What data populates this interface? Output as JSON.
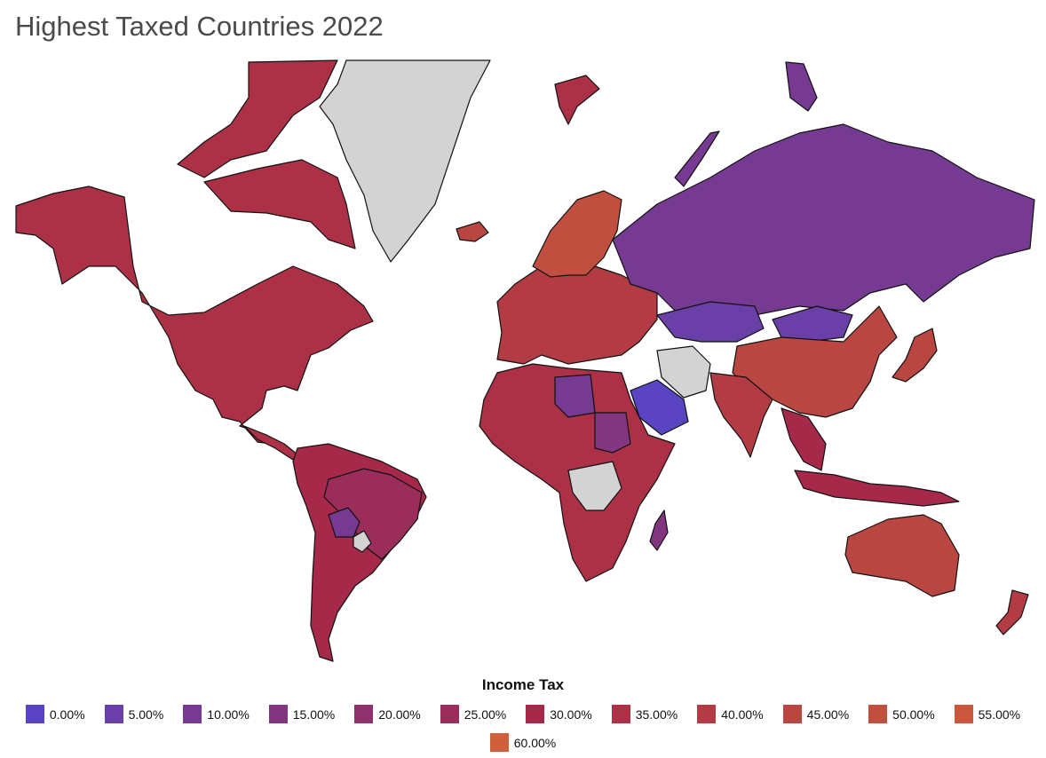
{
  "title": "Highest Taxed Countries 2022",
  "legend": {
    "title": "Income Tax",
    "items": [
      {
        "label": "0.00%",
        "color": "#5a44c2"
      },
      {
        "label": "5.00%",
        "color": "#6a40a8"
      },
      {
        "label": "10.00%",
        "color": "#773a93"
      },
      {
        "label": "15.00%",
        "color": "#833680"
      },
      {
        "label": "20.00%",
        "color": "#8f316d"
      },
      {
        "label": "25.00%",
        "color": "#9b2d5a"
      },
      {
        "label": "30.00%",
        "color": "#a6294a"
      },
      {
        "label": "35.00%",
        "color": "#ad3146"
      },
      {
        "label": "40.00%",
        "color": "#b33c44"
      },
      {
        "label": "45.00%",
        "color": "#ba4642"
      },
      {
        "label": "50.00%",
        "color": "#c04f40"
      },
      {
        "label": "55.00%",
        "color": "#c8573e"
      },
      {
        "label": "60.00%",
        "color": "#cf603c"
      }
    ]
  },
  "colors": {
    "no_data": "#d3d3d3",
    "border": "#111111",
    "background": "#ffffff"
  },
  "map_regions": [
    {
      "name": "north-america",
      "tax": "35.00%"
    },
    {
      "name": "canada-arctic-islands",
      "tax": "35.00%"
    },
    {
      "name": "greenland",
      "tax": null
    },
    {
      "name": "iceland",
      "tax": "45.00%"
    },
    {
      "name": "south-america",
      "tax": "30.00%"
    },
    {
      "name": "brazil",
      "tax": "25.00%"
    },
    {
      "name": "bolivia",
      "tax": "10.00%"
    },
    {
      "name": "paraguay",
      "tax": null
    },
    {
      "name": "europe",
      "tax": "40.00%"
    },
    {
      "name": "scandinavia",
      "tax": "50.00%"
    },
    {
      "name": "russia",
      "tax": "10.00%"
    },
    {
      "name": "novaya-zemlya",
      "tax": "10.00%"
    },
    {
      "name": "svalbard",
      "tax": "35.00%"
    },
    {
      "name": "africa",
      "tax": "35.00%"
    },
    {
      "name": "libya",
      "tax": "10.00%"
    },
    {
      "name": "sudan",
      "tax": "15.00%"
    },
    {
      "name": "saudi-arabia",
      "tax": "0.00%"
    },
    {
      "name": "iran",
      "tax": null
    },
    {
      "name": "india",
      "tax": "40.00%"
    },
    {
      "name": "china",
      "tax": "45.00%"
    },
    {
      "name": "kazakhstan",
      "tax": "5.00%"
    },
    {
      "name": "mongolia",
      "tax": "5.00%"
    },
    {
      "name": "japan",
      "tax": "45.00%"
    },
    {
      "name": "indonesia",
      "tax": "30.00%"
    },
    {
      "name": "australia",
      "tax": "45.00%"
    },
    {
      "name": "new-zealand",
      "tax": "40.00%"
    },
    {
      "name": "madagascar",
      "tax": "15.00%"
    },
    {
      "name": "dr-congo",
      "tax": null
    }
  ]
}
